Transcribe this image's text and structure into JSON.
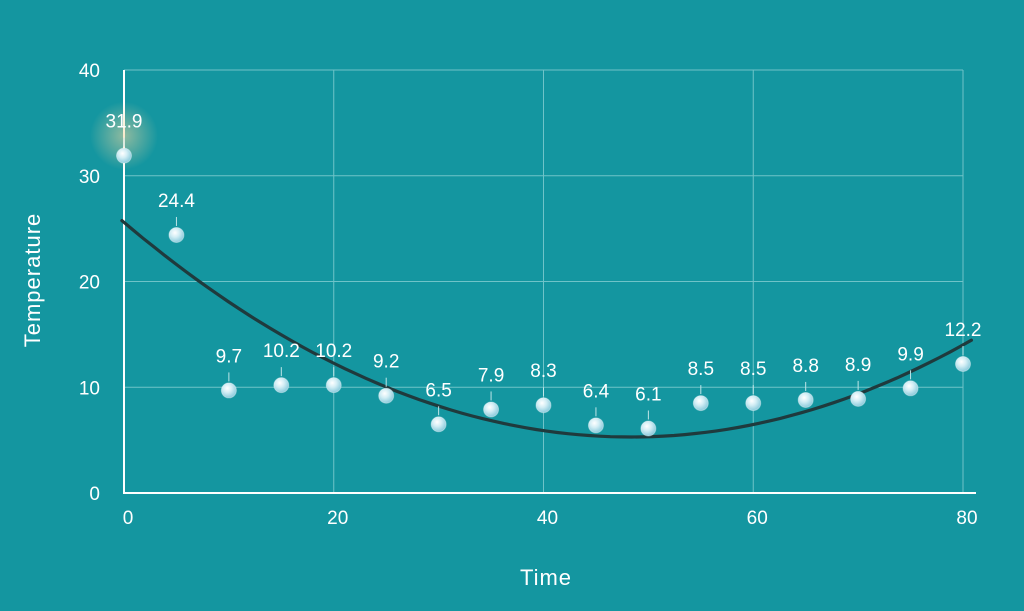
{
  "chart_data": {
    "type": "scatter",
    "title": "",
    "xlabel": "Time",
    "ylabel": "Temperature",
    "xlim": [
      0,
      80
    ],
    "ylim": [
      0,
      40
    ],
    "x_ticks": [
      0,
      20,
      40,
      60,
      80
    ],
    "y_ticks": [
      0,
      10,
      20,
      30,
      40
    ],
    "grid": true,
    "legend": "none",
    "series": [
      {
        "x": [
          0,
          5,
          10,
          15,
          20,
          25,
          30,
          35,
          40,
          45,
          50,
          55,
          60,
          65,
          70,
          75,
          80
        ],
        "y": [
          31.9,
          24.4,
          9.7,
          10.2,
          10.2,
          9.2,
          6.5,
          7.9,
          8.3,
          6.4,
          6.1,
          8.5,
          8.5,
          8.8,
          8.9,
          9.9,
          12.2
        ],
        "labels": [
          "31.9",
          "24.4",
          "9.7",
          "10.2",
          "10.2",
          "9.2",
          "6.5",
          "7.9",
          "8.3",
          "6.4",
          "6.1",
          "8.5",
          "8.5",
          "8.8",
          "8.9",
          "9.9",
          "12.2"
        ]
      }
    ],
    "trendline": {
      "type": "quadratic",
      "x": [
        -0.2,
        20,
        46,
        60,
        80.8
      ],
      "y": [
        25.8,
        12.2,
        5.3,
        6.6,
        14.4
      ]
    },
    "colors": {
      "background": "#1496a0",
      "grid": "#6fc3c8",
      "axis": "#ffffff",
      "trendline": "#1f3a3d",
      "point": "#b9e3ee"
    }
  }
}
